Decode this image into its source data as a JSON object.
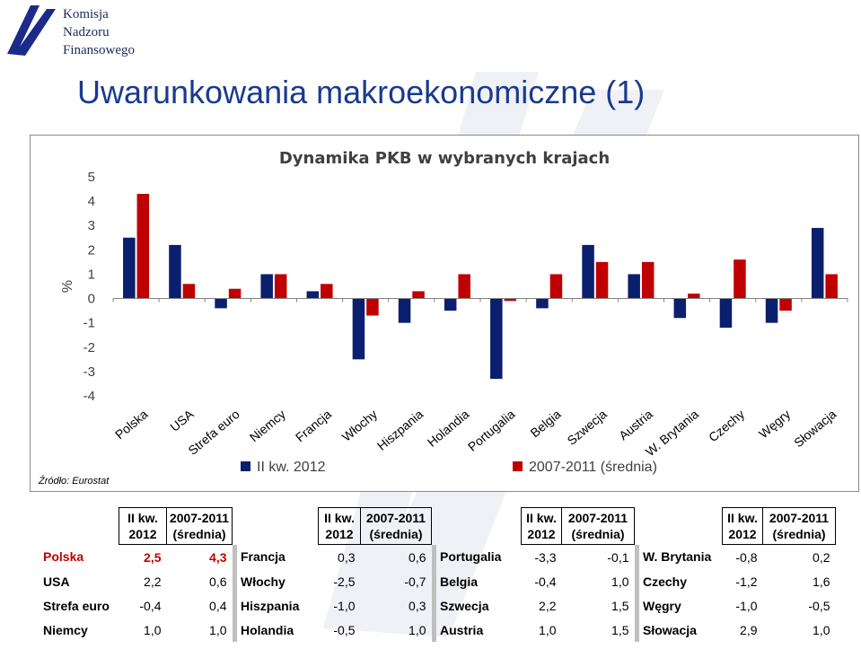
{
  "logo": {
    "lines": [
      "Komisja",
      "Nadzoru",
      "Finansowego"
    ]
  },
  "page": {
    "title": "Uwarunkowania makroekonomiczne (1)",
    "source": "Źródło: Eurostat"
  },
  "colors": {
    "series1": "#0a1f6e",
    "series2": "#c00000",
    "title": "#1a3a8f"
  },
  "chart_data": {
    "type": "bar",
    "title": "Dynamika PKB w wybranych krajach",
    "ylabel": "%",
    "xlabel": "",
    "ylim": [
      -4,
      5
    ],
    "yticks": [
      5,
      4,
      3,
      2,
      1,
      0,
      -1,
      -2,
      -3,
      -4
    ],
    "grid": false,
    "legend_position": "bottom",
    "categories": [
      "Polska",
      "USA",
      "Strefa euro",
      "Niemcy",
      "Francja",
      "Włochy",
      "Hiszpania",
      "Holandia",
      "Portugalia",
      "Belgia",
      "Szwecja",
      "Austria",
      "W. Brytania",
      "Czechy",
      "Węgry",
      "Słowacja"
    ],
    "series": [
      {
        "name": "II kw. 2012",
        "values": [
          2.5,
          2.2,
          -0.4,
          1.0,
          0.3,
          -2.5,
          -1.0,
          -0.5,
          -3.3,
          -0.4,
          2.2,
          1.0,
          -0.8,
          -1.2,
          -1.0,
          2.9
        ]
      },
      {
        "name": "2007-2011 (średnia)",
        "values": [
          4.3,
          0.6,
          0.4,
          1.0,
          0.6,
          -0.7,
          0.3,
          1.0,
          -0.1,
          1.0,
          1.5,
          1.5,
          0.2,
          1.6,
          -0.5,
          1.0
        ]
      }
    ]
  },
  "table": {
    "header_q1": "II kw.",
    "header_q2": "2012",
    "header_a1": "2007-2011",
    "header_a2": "(średnia)",
    "rows": [
      [
        {
          "c": "Polska",
          "q": "2,5",
          "a": "4,3"
        },
        {
          "c": "Francja",
          "q": "0,3",
          "a": "0,6"
        },
        {
          "c": "Portugalia",
          "q": "-3,3",
          "a": "-0,1"
        },
        {
          "c": "W. Brytania",
          "q": "-0,8",
          "a": "0,2"
        }
      ],
      [
        {
          "c": "USA",
          "q": "2,2",
          "a": "0,6"
        },
        {
          "c": "Włochy",
          "q": "-2,5",
          "a": "-0,7"
        },
        {
          "c": "Belgia",
          "q": "-0,4",
          "a": "1,0"
        },
        {
          "c": "Czechy",
          "q": "-1,2",
          "a": "1,6"
        }
      ],
      [
        {
          "c": "Strefa euro",
          "q": "-0,4",
          "a": "0,4"
        },
        {
          "c": "Hiszpania",
          "q": "-1,0",
          "a": "0,3"
        },
        {
          "c": "Szwecja",
          "q": "2,2",
          "a": "1,5"
        },
        {
          "c": "Węgry",
          "q": "-1,0",
          "a": "-0,5"
        }
      ],
      [
        {
          "c": "Niemcy",
          "q": "1,0",
          "a": "1,0"
        },
        {
          "c": "Holandia",
          "q": "-0,5",
          "a": "1,0"
        },
        {
          "c": "Austria",
          "q": "1,0",
          "a": "1,5"
        },
        {
          "c": "Słowacja",
          "q": "2,9",
          "a": "1,0"
        }
      ]
    ]
  }
}
